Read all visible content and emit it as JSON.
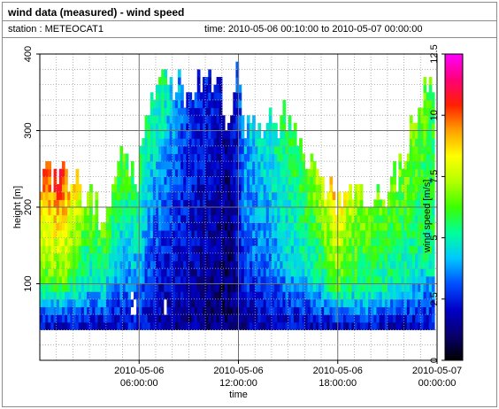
{
  "header": {
    "title": "wind data (measured) - wind speed",
    "station": "station : METEOCAT1",
    "time_range": "time: 2010-05-06 00:10:00 to 2010-05-07 00:00:00"
  },
  "chart_data": {
    "type": "heatmap",
    "xlabel": "time",
    "ylabel": "height [m]",
    "colorbar_label": "wind speed [m/s]",
    "x_ticks": [
      {
        "hour": 6,
        "line1": "2010-05-06",
        "line2": "06:00:00"
      },
      {
        "hour": 12,
        "line1": "2010-05-06",
        "line2": "12:00:00"
      },
      {
        "hour": 18,
        "line1": "2010-05-06",
        "line2": "18:00:00"
      },
      {
        "hour": 24,
        "line1": "2010-05-07",
        "line2": "00:00:00"
      }
    ],
    "xlim_hours": [
      0,
      24
    ],
    "y_ticks": [
      "100",
      "200",
      "300",
      "400"
    ],
    "ylim": [
      0,
      400
    ],
    "colorbar_ticks": [
      "0",
      "2.5",
      "5",
      "7.5",
      "10",
      "12.5"
    ],
    "colorbar_range": [
      0,
      12.5
    ],
    "colormap": [
      "#000000",
      "#08006e",
      "#0000c8",
      "#0050ff",
      "#00c8ff",
      "#00ff9a",
      "#3cff00",
      "#b4ff00",
      "#ffff00",
      "#ffa000",
      "#ff2000",
      "#ff0078",
      "#ff00ff"
    ],
    "grid": true,
    "height_bins_m": [
      40,
      400,
      10
    ],
    "time_step_hours": 0.1667,
    "profile_tops_m": [
      [
        0,
        245
      ],
      [
        1,
        235
      ],
      [
        2,
        240
      ],
      [
        3,
        210
      ],
      [
        4,
        165
      ],
      [
        5,
        270
      ],
      [
        6,
        240
      ],
      [
        6.5,
        320
      ],
      [
        7,
        360
      ],
      [
        8,
        365
      ],
      [
        9,
        345
      ],
      [
        10,
        365
      ],
      [
        11,
        350
      ],
      [
        11.5,
        300
      ],
      [
        12,
        365
      ],
      [
        12.5,
        290
      ],
      [
        13,
        295
      ],
      [
        14,
        300
      ],
      [
        15,
        310
      ],
      [
        16,
        280
      ],
      [
        17,
        235
      ],
      [
        18,
        200
      ],
      [
        19,
        230
      ],
      [
        20,
        195
      ],
      [
        21,
        205
      ],
      [
        22,
        250
      ],
      [
        23,
        330
      ],
      [
        24,
        365
      ]
    ],
    "wind_speed_ms_keyframes": [
      {
        "hour": 0,
        "low": 2.0,
        "mid": 6.0,
        "high": 10.0
      },
      {
        "hour": 1.5,
        "low": 2.0,
        "mid": 6.5,
        "high": 10.5
      },
      {
        "hour": 3,
        "low": 2.0,
        "mid": 4.5,
        "high": 7.0
      },
      {
        "hour": 4.5,
        "low": 1.8,
        "mid": 4.0,
        "high": 6.5
      },
      {
        "hour": 6,
        "low": 2.5,
        "mid": 3.8,
        "high": 6.0
      },
      {
        "hour": 7.5,
        "low": 1.5,
        "mid": 2.5,
        "high": 5.5
      },
      {
        "hour": 9,
        "low": 1.5,
        "mid": 2.0,
        "high": 3.0
      },
      {
        "hour": 10.5,
        "low": 1.2,
        "mid": 1.5,
        "high": 2.5
      },
      {
        "hour": 11.5,
        "low": 1.0,
        "mid": 1.0,
        "high": 1.5
      },
      {
        "hour": 12.5,
        "low": 1.5,
        "mid": 3.0,
        "high": 4.0
      },
      {
        "hour": 14,
        "low": 2.0,
        "mid": 3.5,
        "high": 5.0
      },
      {
        "hour": 15.5,
        "low": 2.0,
        "mid": 4.5,
        "high": 6.0
      },
      {
        "hour": 17,
        "low": 1.8,
        "mid": 5.0,
        "high": 7.5
      },
      {
        "hour": 18,
        "low": 2.0,
        "mid": 6.0,
        "high": 9.0
      },
      {
        "hour": 19.5,
        "low": 2.2,
        "mid": 5.5,
        "high": 7.0
      },
      {
        "hour": 21,
        "low": 2.0,
        "mid": 5.0,
        "high": 6.5
      },
      {
        "hour": 22.5,
        "low": 2.0,
        "mid": 5.0,
        "high": 7.0
      },
      {
        "hour": 24,
        "low": 2.0,
        "mid": 5.5,
        "high": 6.0
      }
    ],
    "missing_value_cells": [
      {
        "hour": 5.67,
        "height_m": 80
      },
      {
        "hour": 5.83,
        "height_m": 70
      },
      {
        "hour": 5.67,
        "height_m": 60
      },
      {
        "hour": 5.83,
        "height_m": 60
      },
      {
        "hour": 7.67,
        "height_m": 70
      },
      {
        "hour": 7.67,
        "height_m": 60
      }
    ]
  }
}
